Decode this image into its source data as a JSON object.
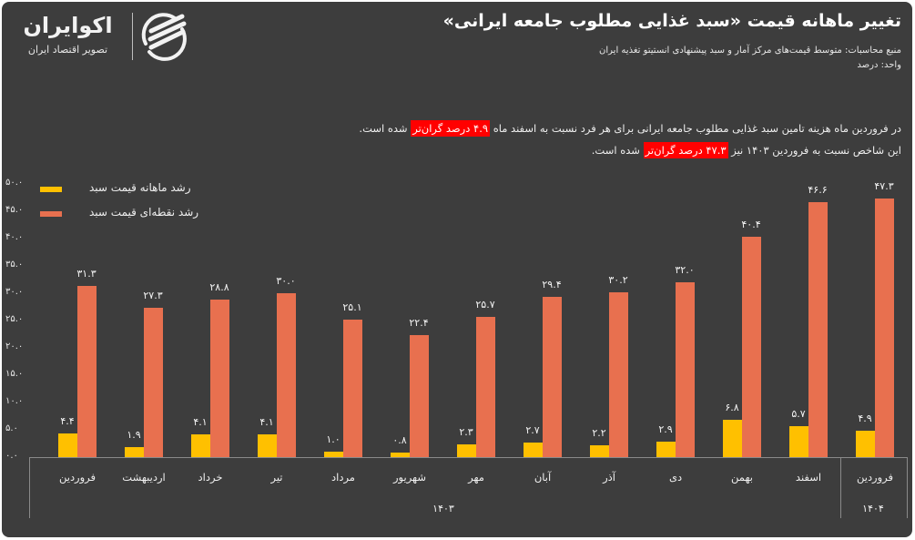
{
  "brand": {
    "name": "اکوایران",
    "tagline": "تصویر اقتصاد ایران",
    "icon": "ecoiran-swoosh-logo-icon"
  },
  "header": {
    "title": "تغییر ماهانه قیمت «سبد غذایی مطلوب جامعه ایرانی»",
    "source": "منبع محاسبات: متوسط قیمت‌های مرکز آمار و سبد پیشنهادی انستیتو تغذیه ایران",
    "unit": "واحد: درصد"
  },
  "notes": {
    "line1_before": "در فروردین ماه هزینه تامین سبد غذایی مطلوب جامعه ایرانی برای هر فرد نسبت به اسفند ماه",
    "line1_highlight": "۴.۹ درصد گران‌تر",
    "line1_after": "شده است.",
    "line2_before": "این شاخص نسبت به فروردین ۱۴۰۳ نیز",
    "line2_highlight": "۴۷.۳ درصد گران‌تر",
    "line2_after": "شده است.",
    "highlight_color": "#ff0000"
  },
  "legend": {
    "monthly": "رشد ماهانه قیمت سبد",
    "yoy": "رشد نقطه‌ای قیمت سبد"
  },
  "yaxis": {
    "ticks": [
      "۵۰.۰",
      "۴۵.۰",
      "۴۰.۰",
      "۳۵.۰",
      "۳۰.۰",
      "۲۵.۰",
      "۲۰.۰",
      "۱۵.۰",
      "۱۰.۰",
      "۵.۰",
      "۰.۰"
    ]
  },
  "xaxis": {
    "categories": [
      "فروردین",
      "اردیبهشت",
      "خرداد",
      "تیر",
      "مرداد",
      "شهریور",
      "مهر",
      "آبان",
      "آذر",
      "دی",
      "بهمن",
      "اسفند",
      "فروردین"
    ],
    "years": [
      {
        "label": "۱۴۰۳",
        "span": "فروردین–اسفند"
      },
      {
        "label": "۱۴۰۴",
        "span": "فروردین"
      }
    ]
  },
  "labels": {
    "monthly": [
      "۴.۴",
      "۱.۹",
      "۴.۱",
      "۴.۱",
      "۱.۰",
      "۰.۸",
      "۲.۳",
      "۲.۷",
      "۲.۲",
      "۲.۹",
      "۶.۸",
      "۵.۷",
      "۴.۹"
    ],
    "yoy": [
      "۳۱.۳",
      "۲۷.۳",
      "۲۸.۸",
      "۳۰.۰",
      "۲۵.۱",
      "۲۲.۴",
      "۲۵.۷",
      "۲۹.۴",
      "۳۰.۲",
      "۳۲.۰",
      "۴۰.۴",
      "۴۶.۶",
      "۴۷.۳"
    ]
  },
  "colors": {
    "background": "#3d3d3d",
    "monthly": "#ffc000",
    "yoy": "#e8704f",
    "text": "#f0f0f0"
  },
  "chart_data": {
    "type": "bar",
    "title": "تغییر ماهانه قیمت «سبد غذایی مطلوب جامعه ایرانی»",
    "subtitle": "منبع محاسبات: متوسط قیمت‌های مرکز آمار و سبد پیشنهادی انستیتو تغذیه ایران",
    "xlabel": "",
    "ylabel": "درصد",
    "ylim": [
      0,
      50
    ],
    "grid": false,
    "legend_position": "top-left",
    "categories": [
      "فروردین ۱۴۰۳",
      "اردیبهشت",
      "خرداد",
      "تیر",
      "مرداد",
      "شهریور",
      "مهر",
      "آبان",
      "آذر",
      "دی",
      "بهمن",
      "اسفند",
      "فروردین ۱۴۰۴"
    ],
    "series": [
      {
        "name": "رشد ماهانه قیمت سبد",
        "color": "#ffc000",
        "values": [
          4.4,
          1.9,
          4.1,
          4.1,
          1.0,
          0.8,
          2.3,
          2.7,
          2.2,
          2.9,
          6.8,
          5.7,
          4.9
        ]
      },
      {
        "name": "رشد نقطه‌ای قیمت سبد",
        "color": "#e8704f",
        "values": [
          31.3,
          27.3,
          28.8,
          30.0,
          25.1,
          22.4,
          25.7,
          29.4,
          30.2,
          32.0,
          40.4,
          46.6,
          47.3
        ]
      }
    ],
    "annotations": [
      "در فروردین ماه هزینه تامین سبد غذایی مطلوب جامعه ایرانی برای هر فرد نسبت به اسفند ماه ۴.۹ درصد گران‌تر شده است.",
      "این شاخص نسبت به فروردین ۱۴۰۳ نیز ۴۷.۳ درصد گران‌تر شده است."
    ]
  }
}
